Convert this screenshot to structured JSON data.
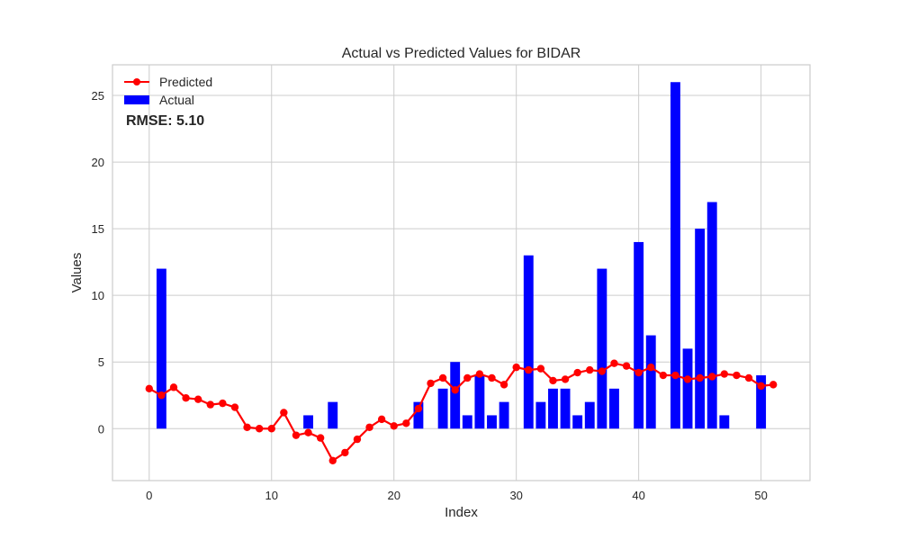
{
  "chart_data": {
    "type": "bar",
    "title": "Actual vs Predicted Values for BIDAR",
    "xlabel": "Index",
    "ylabel": "Values",
    "xlim": [
      -3,
      54
    ],
    "ylim": [
      -3.9,
      27.3
    ],
    "xticks": [
      0,
      10,
      20,
      30,
      40,
      50
    ],
    "yticks": [
      0,
      5,
      10,
      15,
      20,
      25
    ],
    "grid": true,
    "legend_position": "top-left",
    "annotation": {
      "text": "RMSE: 5.10",
      "color": "#ff0000"
    },
    "series": [
      {
        "name": "Predicted",
        "type": "line",
        "color": "#ff0000",
        "marker": "circle",
        "x": [
          0,
          1,
          2,
          3,
          4,
          5,
          6,
          7,
          8,
          9,
          10,
          11,
          12,
          13,
          14,
          15,
          16,
          17,
          18,
          19,
          20,
          21,
          22,
          23,
          24,
          25,
          26,
          27,
          28,
          29,
          30,
          31,
          32,
          33,
          34,
          35,
          36,
          37,
          38,
          39,
          40,
          41,
          42,
          43,
          44,
          45,
          46,
          47,
          48,
          49,
          50,
          51
        ],
        "values": [
          3.0,
          2.5,
          3.1,
          2.3,
          2.2,
          1.8,
          1.9,
          1.6,
          0.1,
          0.0,
          0.0,
          1.2,
          -0.5,
          -0.3,
          -0.7,
          -2.4,
          -1.8,
          -0.8,
          0.1,
          0.7,
          0.2,
          0.4,
          1.5,
          3.4,
          3.8,
          2.9,
          3.8,
          4.1,
          3.8,
          3.3,
          4.6,
          4.4,
          4.5,
          3.6,
          3.7,
          4.2,
          4.4,
          4.3,
          4.9,
          4.7,
          4.2,
          4.6,
          4.0,
          4.0,
          3.7,
          3.8,
          3.9,
          4.1,
          4.0,
          3.8,
          3.2,
          3.3
        ]
      },
      {
        "name": "Actual",
        "type": "bar",
        "color": "#0000ff",
        "x": [
          0,
          1,
          2,
          3,
          4,
          5,
          6,
          7,
          8,
          9,
          10,
          11,
          12,
          13,
          14,
          15,
          16,
          17,
          18,
          19,
          20,
          21,
          22,
          23,
          24,
          25,
          26,
          27,
          28,
          29,
          30,
          31,
          32,
          33,
          34,
          35,
          36,
          37,
          38,
          39,
          40,
          41,
          42,
          43,
          44,
          45,
          46,
          47,
          48,
          49,
          50,
          51
        ],
        "values": [
          0,
          12,
          0,
          0,
          0,
          0,
          0,
          0,
          0,
          0,
          0,
          0,
          0,
          1,
          0,
          2,
          0,
          0,
          0,
          0,
          0,
          0,
          2,
          0,
          3,
          5,
          1,
          4,
          1,
          2,
          0,
          13,
          2,
          3,
          3,
          1,
          2,
          12,
          3,
          0,
          14,
          7,
          0,
          26,
          6,
          15,
          17,
          1,
          0,
          0,
          4,
          0
        ]
      }
    ]
  }
}
